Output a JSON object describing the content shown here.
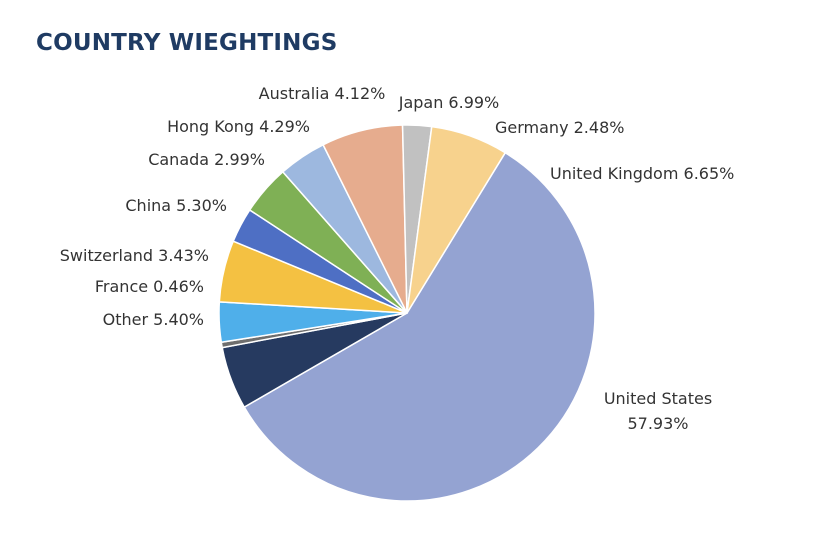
{
  "chart_data": {
    "type": "pie",
    "title": "COUNTRY WIEGHTINGS",
    "slices": [
      {
        "name": "United States",
        "label": "United States",
        "value_label": "57.93%",
        "value": 57.93,
        "color": "#94a3d2"
      },
      {
        "name": "Other",
        "label": "Other 5.40%",
        "value": 5.4,
        "color": "#263a60"
      },
      {
        "name": "France",
        "label": "France 0.46%",
        "value": 0.46,
        "color": "#6e6e6e"
      },
      {
        "name": "Switzerland",
        "label": "Switzerland 3.43%",
        "value": 3.43,
        "color": "#4fafea"
      },
      {
        "name": "China",
        "label": "China 5.30%",
        "value": 5.3,
        "color": "#f4c142"
      },
      {
        "name": "Canada",
        "label": "Canada 2.99%",
        "value": 2.99,
        "color": "#4e6fc4"
      },
      {
        "name": "Hong Kong",
        "label": "Hong Kong 4.29%",
        "value": 4.29,
        "color": "#7fb055"
      },
      {
        "name": "Australia",
        "label": "Australia 4.12%",
        "value": 4.12,
        "color": "#9db8df"
      },
      {
        "name": "Japan",
        "label": "Japan 6.99%",
        "value": 6.99,
        "color": "#e6ac8e"
      },
      {
        "name": "Germany",
        "label": "Germany 2.48%",
        "value": 2.48,
        "color": "#c1c1c1"
      },
      {
        "name": "United Kingdom",
        "label": "United Kingdom 6.65%",
        "value": 6.65,
        "color": "#f7d28d"
      }
    ]
  }
}
